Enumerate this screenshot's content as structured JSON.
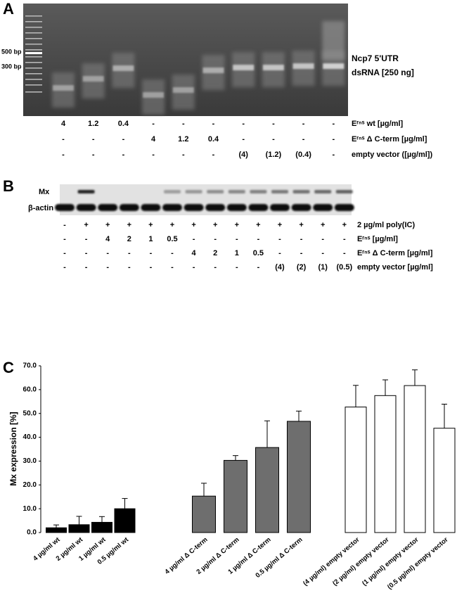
{
  "panel_a": {
    "label": "A",
    "size_markers": [
      "500 bp",
      "300 bp"
    ],
    "annotation": [
      "Ncp7 5'UTR",
      "dsRNA [250 ng]"
    ],
    "rows": [
      {
        "label": "Eʳⁿˢ wt [µg/ml]",
        "cells": [
          "4",
          "1.2",
          "0.4",
          "-",
          "-",
          "-",
          "-",
          "-",
          "-",
          "-"
        ]
      },
      {
        "label": "Eʳⁿˢ Δ C-term [µg/ml]",
        "cells": [
          "-",
          "-",
          "-",
          "4",
          "1.2",
          "0.4",
          "-",
          "-",
          "-",
          "-"
        ]
      },
      {
        "label": "empty vector ([µg/ml])",
        "cells": [
          "-",
          "-",
          "-",
          "-",
          "-",
          "-",
          "(4)",
          "(1.2)",
          "(0.4)",
          "-"
        ]
      }
    ]
  },
  "panel_b": {
    "label": "B",
    "band_labels": [
      "Mx",
      "β-actin"
    ],
    "rows": [
      {
        "label": "2 µg/ml poly(IC)",
        "cells": [
          "-",
          "+",
          "+",
          "+",
          "+",
          "+",
          "+",
          "+",
          "+",
          "+",
          "+",
          "+",
          "+",
          "+"
        ]
      },
      {
        "label": "Eʳⁿˢ [µg/ml]",
        "cells": [
          "-",
          "-",
          "4",
          "2",
          "1",
          "0.5",
          "-",
          "-",
          "-",
          "-",
          "-",
          "-",
          "-",
          "-"
        ]
      },
      {
        "label": "Eʳⁿˢ Δ C-term [µg/ml]",
        "cells": [
          "-",
          "-",
          "-",
          "-",
          "-",
          "-",
          "4",
          "2",
          "1",
          "0.5",
          "-",
          "-",
          "-",
          "-"
        ]
      },
      {
        "label": "empty vector [µg/ml]",
        "cells": [
          "-",
          "-",
          "-",
          "-",
          "-",
          "-",
          "-",
          "-",
          "-",
          "-",
          "(4)",
          "(2)",
          "(1)",
          "(0.5)"
        ]
      }
    ]
  },
  "chart_data": {
    "type": "bar",
    "label": "C",
    "y_label": "Mx expression [%]",
    "categories": [
      "4 µg/ml wt",
      "2 µg/ml wt",
      "1 µg/ml wt",
      "0.5 µg/ml wt",
      "4 µg/ml Δ C-term",
      "2 µg/ml Δ C-term",
      "1 µg/ml Δ C-term",
      "0.5 µg/ml Δ C-term",
      "(4 µg/ml) empty vector",
      "(2 µg/ml) empty vector",
      "(1 µg/ml) empty vector",
      "(0.5 µg/ml) empty vector"
    ],
    "values": [
      2.0,
      3.3,
      4.3,
      10.0,
      15.3,
      30.3,
      35.7,
      46.7,
      52.7,
      57.5,
      61.7,
      43.8
    ],
    "errors": [
      1.2,
      3.5,
      2.4,
      4.3,
      5.4,
      2.0,
      11.2,
      4.3,
      9.1,
      6.6,
      6.6,
      10.1
    ],
    "colors": [
      "#000000",
      "#000000",
      "#000000",
      "#000000",
      "#6e6e6e",
      "#6e6e6e",
      "#6e6e6e",
      "#6e6e6e",
      "#ffffff",
      "#ffffff",
      "#ffffff",
      "#ffffff"
    ],
    "ylim": [
      0,
      70
    ],
    "yticks": [
      {
        "value": 0,
        "label": "0.0"
      },
      {
        "value": 10,
        "label": "10.0"
      },
      {
        "value": 20,
        "label": "20.0"
      },
      {
        "value": 30,
        "label": "30.0"
      },
      {
        "value": 40,
        "label": "40.0"
      },
      {
        "value": 50,
        "label": "50.0"
      },
      {
        "value": 60,
        "label": "60.0"
      },
      {
        "value": 70,
        "label": "70.0"
      }
    ]
  }
}
